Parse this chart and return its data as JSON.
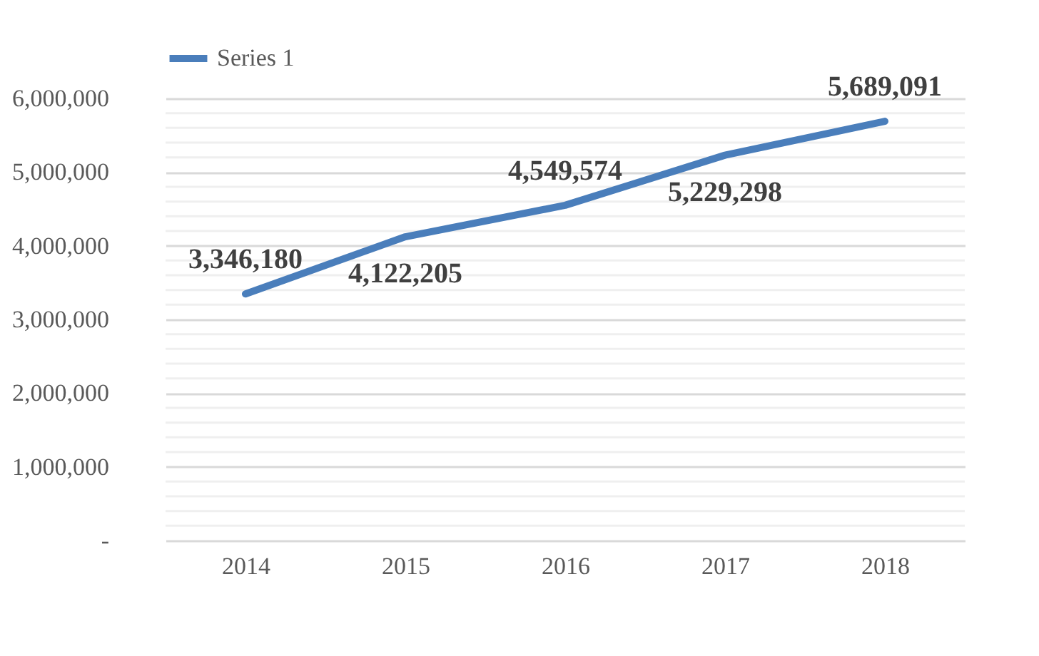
{
  "chart_data": {
    "type": "line",
    "categories": [
      "2014",
      "2015",
      "2016",
      "2017",
      "2018"
    ],
    "series": [
      {
        "name": "Series 1",
        "color": "#4a7ebb",
        "values": [
          3346180,
          4122205,
          4549574,
          5229298,
          5689091
        ],
        "value_labels": [
          "3,346,180",
          "4,122,205",
          "4,549,574",
          "5,229,298",
          "5,689,091"
        ]
      }
    ],
    "ylim": [
      0,
      6000000
    ],
    "yticks": [
      {
        "value": 0,
        "label": "-"
      },
      {
        "value": 200000,
        "label": null
      },
      {
        "value": 400000,
        "label": null
      },
      {
        "value": 600000,
        "label": null
      },
      {
        "value": 800000,
        "label": null
      },
      {
        "value": 1000000,
        "label": "1,000,000"
      },
      {
        "value": 1200000,
        "label": null
      },
      {
        "value": 1400000,
        "label": null
      },
      {
        "value": 1600000,
        "label": null
      },
      {
        "value": 1800000,
        "label": null
      },
      {
        "value": 2000000,
        "label": "2,000,000"
      },
      {
        "value": 2200000,
        "label": null
      },
      {
        "value": 2400000,
        "label": null
      },
      {
        "value": 2600000,
        "label": null
      },
      {
        "value": 2800000,
        "label": null
      },
      {
        "value": 3000000,
        "label": "3,000,000"
      },
      {
        "value": 3200000,
        "label": null
      },
      {
        "value": 3400000,
        "label": null
      },
      {
        "value": 3600000,
        "label": null
      },
      {
        "value": 3800000,
        "label": null
      },
      {
        "value": 4000000,
        "label": "4,000,000"
      },
      {
        "value": 4200000,
        "label": null
      },
      {
        "value": 4400000,
        "label": null
      },
      {
        "value": 4600000,
        "label": null
      },
      {
        "value": 4800000,
        "label": null
      },
      {
        "value": 5000000,
        "label": "5,000,000"
      },
      {
        "value": 5200000,
        "label": null
      },
      {
        "value": 5400000,
        "label": null
      },
      {
        "value": 5600000,
        "label": null
      },
      {
        "value": 5800000,
        "label": null
      },
      {
        "value": 6000000,
        "label": "6,000,000"
      }
    ],
    "grid": "y",
    "legend": "top",
    "line_style": "solid",
    "marker": "none"
  }
}
